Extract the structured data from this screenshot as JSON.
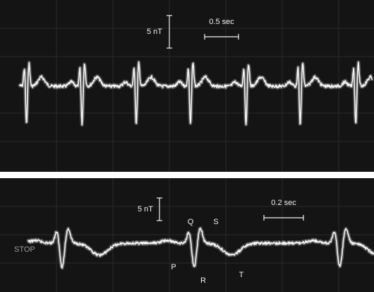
{
  "chart_data": [
    {
      "type": "line",
      "panel": "top",
      "grid": true,
      "annotations": {
        "amplitude_scale": "5 nT",
        "time_scale": "0.5 sec"
      },
      "beat_times_s": [
        0.1,
        0.92,
        1.72,
        2.52,
        3.34,
        4.14,
        4.96
      ],
      "series": [
        {
          "wave": "magnetocardiogram",
          "r_peak_nT": -7,
          "t_wave_nT": 1.6
        }
      ]
    },
    {
      "type": "line",
      "panel": "bottom",
      "grid": true,
      "annotations": {
        "amplitude_scale": "5 nT",
        "time_scale": "0.2 sec",
        "status": "STOP"
      },
      "wave_labels": [
        "Q",
        "S",
        "P",
        "R",
        "T"
      ],
      "beat_times_s": [
        0.2,
        0.98,
        1.84
      ],
      "series": [
        {
          "wave": "magnetocardiogram",
          "r_peak_nT": -5,
          "t_wave_nT": -2.4
        }
      ]
    }
  ]
}
